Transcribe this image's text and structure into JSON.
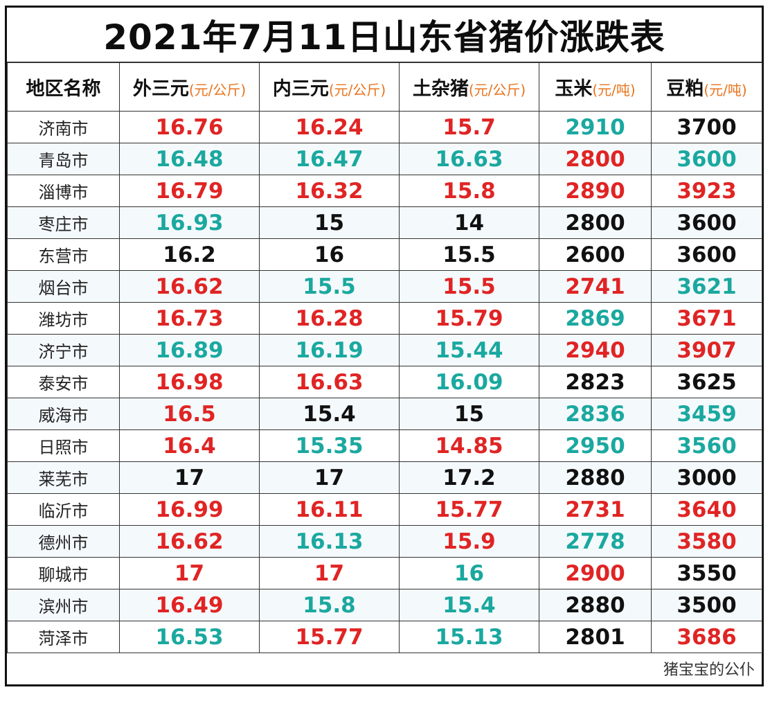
{
  "title": "2021年7月11日山东省猪价涨跌表",
  "colors": {
    "up": "#e02424",
    "down": "#1aa89f",
    "flat": "#111111",
    "unit": "#e8731c"
  },
  "columns": [
    {
      "label": "地区名称",
      "unit": ""
    },
    {
      "label": "外三元",
      "unit": "(元/公斤)"
    },
    {
      "label": "内三元",
      "unit": "(元/公斤)"
    },
    {
      "label": "土杂猪",
      "unit": "(元/公斤)"
    },
    {
      "label": "玉米",
      "unit": "(元/吨)"
    },
    {
      "label": "豆粕",
      "unit": "(元/吨)"
    }
  ],
  "rows": [
    {
      "region": "济南市",
      "cells": [
        {
          "v": "16.76",
          "t": "up"
        },
        {
          "v": "16.24",
          "t": "up"
        },
        {
          "v": "15.7",
          "t": "up"
        },
        {
          "v": "2910",
          "t": "down"
        },
        {
          "v": "3700",
          "t": "flat"
        }
      ]
    },
    {
      "region": "青岛市",
      "cells": [
        {
          "v": "16.48",
          "t": "down"
        },
        {
          "v": "16.47",
          "t": "down"
        },
        {
          "v": "16.63",
          "t": "down"
        },
        {
          "v": "2800",
          "t": "up"
        },
        {
          "v": "3600",
          "t": "down"
        }
      ]
    },
    {
      "region": "淄博市",
      "cells": [
        {
          "v": "16.79",
          "t": "up"
        },
        {
          "v": "16.32",
          "t": "up"
        },
        {
          "v": "15.8",
          "t": "up"
        },
        {
          "v": "2890",
          "t": "up"
        },
        {
          "v": "3923",
          "t": "up"
        }
      ]
    },
    {
      "region": "枣庄市",
      "cells": [
        {
          "v": "16.93",
          "t": "down"
        },
        {
          "v": "15",
          "t": "flat"
        },
        {
          "v": "14",
          "t": "flat"
        },
        {
          "v": "2800",
          "t": "flat"
        },
        {
          "v": "3600",
          "t": "flat"
        }
      ]
    },
    {
      "region": "东营市",
      "cells": [
        {
          "v": "16.2",
          "t": "flat"
        },
        {
          "v": "16",
          "t": "flat"
        },
        {
          "v": "15.5",
          "t": "flat"
        },
        {
          "v": "2600",
          "t": "flat"
        },
        {
          "v": "3600",
          "t": "flat"
        }
      ]
    },
    {
      "region": "烟台市",
      "cells": [
        {
          "v": "16.62",
          "t": "up"
        },
        {
          "v": "15.5",
          "t": "down"
        },
        {
          "v": "15.5",
          "t": "up"
        },
        {
          "v": "2741",
          "t": "up"
        },
        {
          "v": "3621",
          "t": "down"
        }
      ]
    },
    {
      "region": "潍坊市",
      "cells": [
        {
          "v": "16.73",
          "t": "up"
        },
        {
          "v": "16.28",
          "t": "up"
        },
        {
          "v": "15.79",
          "t": "up"
        },
        {
          "v": "2869",
          "t": "down"
        },
        {
          "v": "3671",
          "t": "up"
        }
      ]
    },
    {
      "region": "济宁市",
      "cells": [
        {
          "v": "16.89",
          "t": "down"
        },
        {
          "v": "16.19",
          "t": "down"
        },
        {
          "v": "15.44",
          "t": "down"
        },
        {
          "v": "2940",
          "t": "up"
        },
        {
          "v": "3907",
          "t": "up"
        }
      ]
    },
    {
      "region": "泰安市",
      "cells": [
        {
          "v": "16.98",
          "t": "up"
        },
        {
          "v": "16.63",
          "t": "up"
        },
        {
          "v": "16.09",
          "t": "down"
        },
        {
          "v": "2823",
          "t": "flat"
        },
        {
          "v": "3625",
          "t": "flat"
        }
      ]
    },
    {
      "region": "威海市",
      "cells": [
        {
          "v": "16.5",
          "t": "up"
        },
        {
          "v": "15.4",
          "t": "flat"
        },
        {
          "v": "15",
          "t": "flat"
        },
        {
          "v": "2836",
          "t": "down"
        },
        {
          "v": "3459",
          "t": "down"
        }
      ]
    },
    {
      "region": "日照市",
      "cells": [
        {
          "v": "16.4",
          "t": "up"
        },
        {
          "v": "15.35",
          "t": "down"
        },
        {
          "v": "14.85",
          "t": "up"
        },
        {
          "v": "2950",
          "t": "down"
        },
        {
          "v": "3560",
          "t": "down"
        }
      ]
    },
    {
      "region": "莱芜市",
      "cells": [
        {
          "v": "17",
          "t": "flat"
        },
        {
          "v": "17",
          "t": "flat"
        },
        {
          "v": "17.2",
          "t": "flat"
        },
        {
          "v": "2880",
          "t": "flat"
        },
        {
          "v": "3000",
          "t": "flat"
        }
      ]
    },
    {
      "region": "临沂市",
      "cells": [
        {
          "v": "16.99",
          "t": "up"
        },
        {
          "v": "16.11",
          "t": "up"
        },
        {
          "v": "15.77",
          "t": "up"
        },
        {
          "v": "2731",
          "t": "up"
        },
        {
          "v": "3640",
          "t": "up"
        }
      ]
    },
    {
      "region": "德州市",
      "cells": [
        {
          "v": "16.62",
          "t": "up"
        },
        {
          "v": "16.13",
          "t": "down"
        },
        {
          "v": "15.9",
          "t": "up"
        },
        {
          "v": "2778",
          "t": "down"
        },
        {
          "v": "3580",
          "t": "up"
        }
      ]
    },
    {
      "region": "聊城市",
      "cells": [
        {
          "v": "17",
          "t": "up"
        },
        {
          "v": "17",
          "t": "up"
        },
        {
          "v": "16",
          "t": "down"
        },
        {
          "v": "2900",
          "t": "up"
        },
        {
          "v": "3550",
          "t": "flat"
        }
      ]
    },
    {
      "region": "滨州市",
      "cells": [
        {
          "v": "16.49",
          "t": "up"
        },
        {
          "v": "15.8",
          "t": "down"
        },
        {
          "v": "15.4",
          "t": "down"
        },
        {
          "v": "2880",
          "t": "flat"
        },
        {
          "v": "3500",
          "t": "flat"
        }
      ]
    },
    {
      "region": "菏泽市",
      "cells": [
        {
          "v": "16.53",
          "t": "down"
        },
        {
          "v": "15.77",
          "t": "up"
        },
        {
          "v": "15.13",
          "t": "down"
        },
        {
          "v": "2801",
          "t": "flat"
        },
        {
          "v": "3686",
          "t": "up"
        }
      ]
    }
  ],
  "footer": "猪宝宝的公仆"
}
